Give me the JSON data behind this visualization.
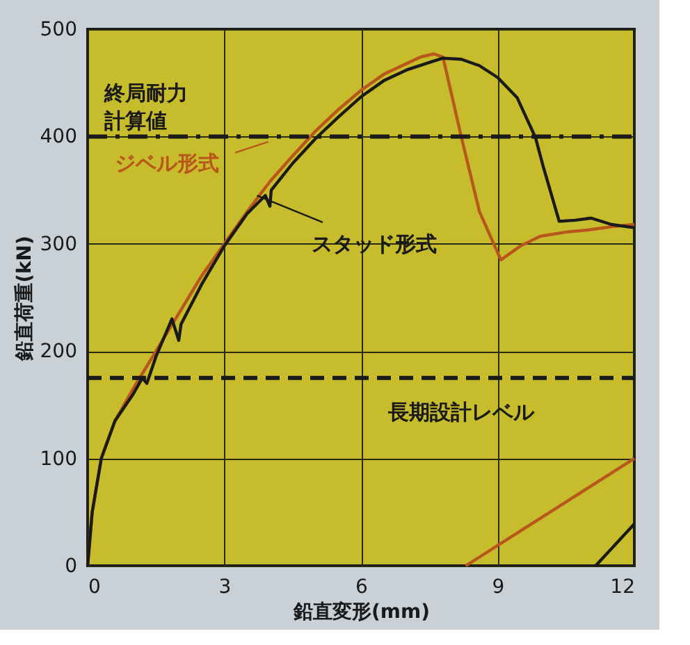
{
  "chart_data": {
    "type": "line",
    "xlabel": "鉛直変形(mm)",
    "ylabel": "鉛直荷重(kN)",
    "xlim": [
      0,
      12
    ],
    "ylim": [
      0,
      500
    ],
    "xticks": [
      0,
      3,
      6,
      9,
      12
    ],
    "yticks": [
      0,
      100,
      200,
      300,
      400,
      500
    ],
    "grid": true,
    "legend": false,
    "line_style": "solid",
    "marker": "none",
    "series": [
      {
        "name": "ジベル形式",
        "color": "#b8561c",
        "x": [
          0,
          0.1,
          0.3,
          0.6,
          1.0,
          1.5,
          2.0,
          2.5,
          3.0,
          3.5,
          4.0,
          4.5,
          5.0,
          5.5,
          6.0,
          6.5,
          7.0,
          7.3,
          7.6,
          7.8,
          8.2,
          8.6,
          9.07,
          9.5,
          9.93,
          10.5,
          11.0,
          11.5,
          12.0
        ],
        "values": [
          0,
          50,
          100,
          135,
          165,
          200,
          235,
          270,
          300,
          330,
          358,
          382,
          405,
          425,
          443,
          458,
          468,
          474,
          477,
          474,
          400,
          330,
          285,
          298,
          307,
          311,
          313,
          316,
          318
        ]
      },
      {
        "name": "スタッド形式",
        "color": "#1a1a1a",
        "x": [
          0,
          0.1,
          0.3,
          0.6,
          1.0,
          1.2,
          1.3,
          1.5,
          1.85,
          2.0,
          2.05,
          2.5,
          3.0,
          3.5,
          3.9,
          4.0,
          4.03,
          4.5,
          5.0,
          5.5,
          6.0,
          6.5,
          7.0,
          7.5,
          7.8,
          8.2,
          8.6,
          9.0,
          9.43,
          9.83,
          10.0,
          10.35,
          10.7,
          11.05,
          11.5,
          12.0
        ],
        "values": [
          0,
          50,
          100,
          135,
          160,
          175,
          170,
          195,
          230,
          210,
          225,
          262,
          298,
          328,
          345,
          335,
          350,
          375,
          398,
          418,
          437,
          452,
          462,
          469,
          473,
          472,
          466,
          455,
          436,
          399,
          372,
          321,
          322,
          324,
          318,
          315
        ]
      },
      {
        "color": "#b8561c",
        "x": [
          8.3,
          12.0
        ],
        "values": [
          0,
          100
        ]
      },
      {
        "color": "#1a1a1a",
        "x": [
          11.15,
          12.0
        ],
        "values": [
          0,
          39
        ]
      }
    ],
    "ref_lines": [
      {
        "axis": "y",
        "value": 400,
        "label": "終局耐力計算値",
        "line_style": "dashdot",
        "color": "#1a1a1a"
      },
      {
        "axis": "y",
        "value": 175,
        "label": "長期設計レベル",
        "line_style": "dashed",
        "color": "#1a1a1a"
      }
    ]
  }
}
